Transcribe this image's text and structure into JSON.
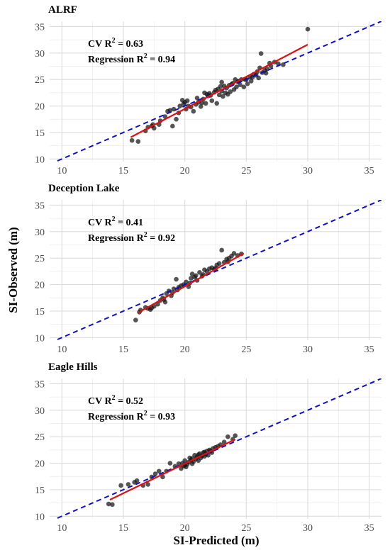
{
  "figure": {
    "xlabel": "SI-Predicted (m)",
    "ylabel": "SI-Observed (m)"
  },
  "chart_data": [
    {
      "type": "scatter",
      "title": "ALRF",
      "xlim": [
        9,
        36
      ],
      "ylim": [
        9.5,
        36
      ],
      "xticks": [
        10,
        15,
        20,
        25,
        30,
        35
      ],
      "yticks": [
        10,
        15,
        20,
        25,
        30,
        35
      ],
      "grid": true,
      "annotations": {
        "cv_label": "CV R",
        "cv_value": " = 0.63",
        "reg_label": "Regression R",
        "reg_value": " = 0.94",
        "sup": "2"
      },
      "one_to_one_line": {
        "style": "dashed",
        "color": "#1010c0",
        "x": [
          9,
          36
        ],
        "y": [
          9,
          36
        ]
      },
      "regression_line": {
        "color": "#dd1111",
        "x": [
          15.6,
          30.0
        ],
        "y": [
          14.1,
          31.6
        ]
      },
      "points": [
        [
          15.7,
          13.5
        ],
        [
          16.2,
          13.3
        ],
        [
          16.8,
          15.3
        ],
        [
          17.0,
          16.0
        ],
        [
          17.3,
          16.2
        ],
        [
          17.5,
          15.8
        ],
        [
          17.9,
          16.5
        ],
        [
          18.0,
          17.2
        ],
        [
          18.4,
          18.0
        ],
        [
          18.6,
          19.0
        ],
        [
          18.8,
          19.2
        ],
        [
          19.0,
          16.2
        ],
        [
          19.1,
          19.4
        ],
        [
          19.3,
          17.5
        ],
        [
          19.5,
          18.7
        ],
        [
          19.6,
          20.0
        ],
        [
          19.8,
          21.1
        ],
        [
          20.0,
          20.7
        ],
        [
          20.1,
          19.4
        ],
        [
          20.3,
          20.0
        ],
        [
          20.5,
          19.8
        ],
        [
          20.7,
          19.0
        ],
        [
          20.9,
          20.3
        ],
        [
          21.0,
          21.5
        ],
        [
          21.1,
          20.7
        ],
        [
          21.3,
          19.9
        ],
        [
          21.5,
          21.3
        ],
        [
          21.6,
          22.5
        ],
        [
          21.7,
          20.5
        ],
        [
          21.9,
          21.9
        ],
        [
          22.1,
          22.0
        ],
        [
          22.2,
          21.0
        ],
        [
          22.4,
          22.6
        ],
        [
          22.5,
          23.0
        ],
        [
          22.6,
          20.5
        ],
        [
          22.8,
          22.1
        ],
        [
          22.9,
          23.7
        ],
        [
          23.0,
          24.5
        ],
        [
          23.1,
          21.8
        ],
        [
          23.3,
          22.5
        ],
        [
          23.4,
          23.4
        ],
        [
          23.5,
          22.2
        ],
        [
          23.6,
          23.9
        ],
        [
          23.7,
          22.7
        ],
        [
          23.9,
          24.3
        ],
        [
          24.0,
          23.1
        ],
        [
          24.1,
          25.0
        ],
        [
          24.2,
          23.6
        ],
        [
          24.4,
          24.7
        ],
        [
          24.5,
          24.0
        ],
        [
          24.6,
          25.0
        ],
        [
          24.8,
          23.6
        ],
        [
          25.0,
          25.0
        ],
        [
          25.1,
          24.2
        ],
        [
          25.3,
          25.5
        ],
        [
          25.4,
          24.7
        ],
        [
          25.6,
          26.0
        ],
        [
          25.8,
          25.8
        ],
        [
          25.9,
          26.5
        ],
        [
          26.0,
          25.3
        ],
        [
          26.1,
          27.2
        ],
        [
          26.2,
          29.9
        ],
        [
          26.3,
          26.3
        ],
        [
          26.5,
          26.7
        ],
        [
          26.7,
          27.0
        ],
        [
          26.9,
          28.1
        ],
        [
          27.0,
          27.6
        ],
        [
          27.3,
          28.3
        ],
        [
          27.6,
          28.0
        ],
        [
          28.0,
          27.8
        ],
        [
          30.0,
          34.5
        ],
        [
          17.4,
          16.5
        ],
        [
          19.9,
          20.4
        ],
        [
          21.4,
          20.6
        ],
        [
          22.0,
          22.4
        ],
        [
          22.7,
          23.2
        ],
        [
          23.2,
          23.8
        ],
        [
          23.8,
          24.1
        ],
        [
          24.3,
          24.6
        ],
        [
          24.9,
          25.0
        ],
        [
          25.5,
          25.4
        ],
        [
          26.6,
          26.2
        ],
        [
          20.2,
          21.0
        ],
        [
          21.8,
          22.2
        ],
        [
          23.0,
          22.8
        ]
      ]
    },
    {
      "type": "scatter",
      "title": "Deception Lake",
      "xlim": [
        9,
        36
      ],
      "ylim": [
        9.5,
        36
      ],
      "xticks": [
        10,
        15,
        20,
        25,
        30,
        35
      ],
      "yticks": [
        10,
        15,
        20,
        25,
        30,
        35
      ],
      "grid": true,
      "annotations": {
        "cv_label": "CV R",
        "cv_value": " = 0.41",
        "reg_label": "Regression R",
        "reg_value": " = 0.92",
        "sup": "2"
      },
      "one_to_one_line": {
        "style": "dashed",
        "color": "#1010c0",
        "x": [
          9,
          36
        ],
        "y": [
          9,
          36
        ]
      },
      "regression_line": {
        "color": "#dd1111",
        "x": [
          16.2,
          24.8
        ],
        "y": [
          14.7,
          25.9
        ]
      },
      "points": [
        [
          16.0,
          13.3
        ],
        [
          16.4,
          15.2
        ],
        [
          16.8,
          15.7
        ],
        [
          17.0,
          15.5
        ],
        [
          17.2,
          15.3
        ],
        [
          17.5,
          15.9
        ],
        [
          17.8,
          16.3
        ],
        [
          18.0,
          17.0
        ],
        [
          18.2,
          17.5
        ],
        [
          18.4,
          16.7
        ],
        [
          18.5,
          18.3
        ],
        [
          18.7,
          18.8
        ],
        [
          18.9,
          17.9
        ],
        [
          19.1,
          19.2
        ],
        [
          19.3,
          21.0
        ],
        [
          19.5,
          19.5
        ],
        [
          19.7,
          19.8
        ],
        [
          19.9,
          20.0
        ],
        [
          20.1,
          20.5
        ],
        [
          20.3,
          19.6
        ],
        [
          20.5,
          21.2
        ],
        [
          20.6,
          22.0
        ],
        [
          20.8,
          21.4
        ],
        [
          21.0,
          20.8
        ],
        [
          21.2,
          22.3
        ],
        [
          21.4,
          21.6
        ],
        [
          21.6,
          22.8
        ],
        [
          21.8,
          22.5
        ],
        [
          22.0,
          23.0
        ],
        [
          22.2,
          23.2
        ],
        [
          22.4,
          22.9
        ],
        [
          22.6,
          23.7
        ],
        [
          22.8,
          24.0
        ],
        [
          23.0,
          26.5
        ],
        [
          23.2,
          24.2
        ],
        [
          23.4,
          24.8
        ],
        [
          23.6,
          25.0
        ],
        [
          23.8,
          25.4
        ],
        [
          24.0,
          25.9
        ],
        [
          24.3,
          25.5
        ],
        [
          24.6,
          25.8
        ],
        [
          16.3,
          14.8
        ],
        [
          17.3,
          15.6
        ],
        [
          18.3,
          17.2
        ],
        [
          19.4,
          19.0
        ],
        [
          20.4,
          20.3
        ],
        [
          21.5,
          21.9
        ],
        [
          22.5,
          23.1
        ],
        [
          23.5,
          24.3
        ],
        [
          20.9,
          21.7
        ],
        [
          19.0,
          18.5
        ]
      ]
    },
    {
      "type": "scatter",
      "title": "Eagle Hills",
      "xlim": [
        9,
        36
      ],
      "ylim": [
        9.5,
        36
      ],
      "xticks": [
        10,
        15,
        20,
        25,
        30,
        35
      ],
      "yticks": [
        10,
        15,
        20,
        25,
        30,
        35
      ],
      "grid": true,
      "annotations": {
        "cv_label": "CV R",
        "cv_value": " = 0.52",
        "reg_label": "Regression R",
        "reg_value": " = 0.93",
        "sup": "2"
      },
      "one_to_one_line": {
        "style": "dashed",
        "color": "#1010c0",
        "x": [
          9,
          36
        ],
        "y": [
          9,
          36
        ]
      },
      "regression_line": {
        "color": "#dd1111",
        "x": [
          13.9,
          24.1
        ],
        "y": [
          13.1,
          24.5
        ]
      },
      "points": [
        [
          13.8,
          12.3
        ],
        [
          14.1,
          12.2
        ],
        [
          14.8,
          15.8
        ],
        [
          15.4,
          16.0
        ],
        [
          15.9,
          16.4
        ],
        [
          16.1,
          16.7
        ],
        [
          16.6,
          15.8
        ],
        [
          17.0,
          16.0
        ],
        [
          17.3,
          17.4
        ],
        [
          17.6,
          18.0
        ],
        [
          17.9,
          18.5
        ],
        [
          18.2,
          17.4
        ],
        [
          18.5,
          18.5
        ],
        [
          18.8,
          20.0
        ],
        [
          19.2,
          19.4
        ],
        [
          19.5,
          19.9
        ],
        [
          19.7,
          19.0
        ],
        [
          19.9,
          19.5
        ],
        [
          20.0,
          20.5
        ],
        [
          20.1,
          19.3
        ],
        [
          20.2,
          19.8
        ],
        [
          20.3,
          20.2
        ],
        [
          20.4,
          21.0
        ],
        [
          20.5,
          20.6
        ],
        [
          20.6,
          19.9
        ],
        [
          20.7,
          20.3
        ],
        [
          20.8,
          21.5
        ],
        [
          20.9,
          20.8
        ],
        [
          21.0,
          21.2
        ],
        [
          21.1,
          20.5
        ],
        [
          21.2,
          21.8
        ],
        [
          21.3,
          21.0
        ],
        [
          21.4,
          21.4
        ],
        [
          21.5,
          22.0
        ],
        [
          21.6,
          21.3
        ],
        [
          21.7,
          21.7
        ],
        [
          21.8,
          22.3
        ],
        [
          21.9,
          21.5
        ],
        [
          22.0,
          22.5
        ],
        [
          22.2,
          22.0
        ],
        [
          22.3,
          22.8
        ],
        [
          22.5,
          23.0
        ],
        [
          22.7,
          23.2
        ],
        [
          22.9,
          23.5
        ],
        [
          23.2,
          24.0
        ],
        [
          23.5,
          25.0
        ],
        [
          23.9,
          24.5
        ],
        [
          24.1,
          25.2
        ],
        [
          19.8,
          20.0
        ],
        [
          20.0,
          19.6
        ],
        [
          20.6,
          20.9
        ],
        [
          21.1,
          21.6
        ],
        [
          21.6,
          22.1
        ],
        [
          22.1,
          22.3
        ]
      ]
    }
  ]
}
